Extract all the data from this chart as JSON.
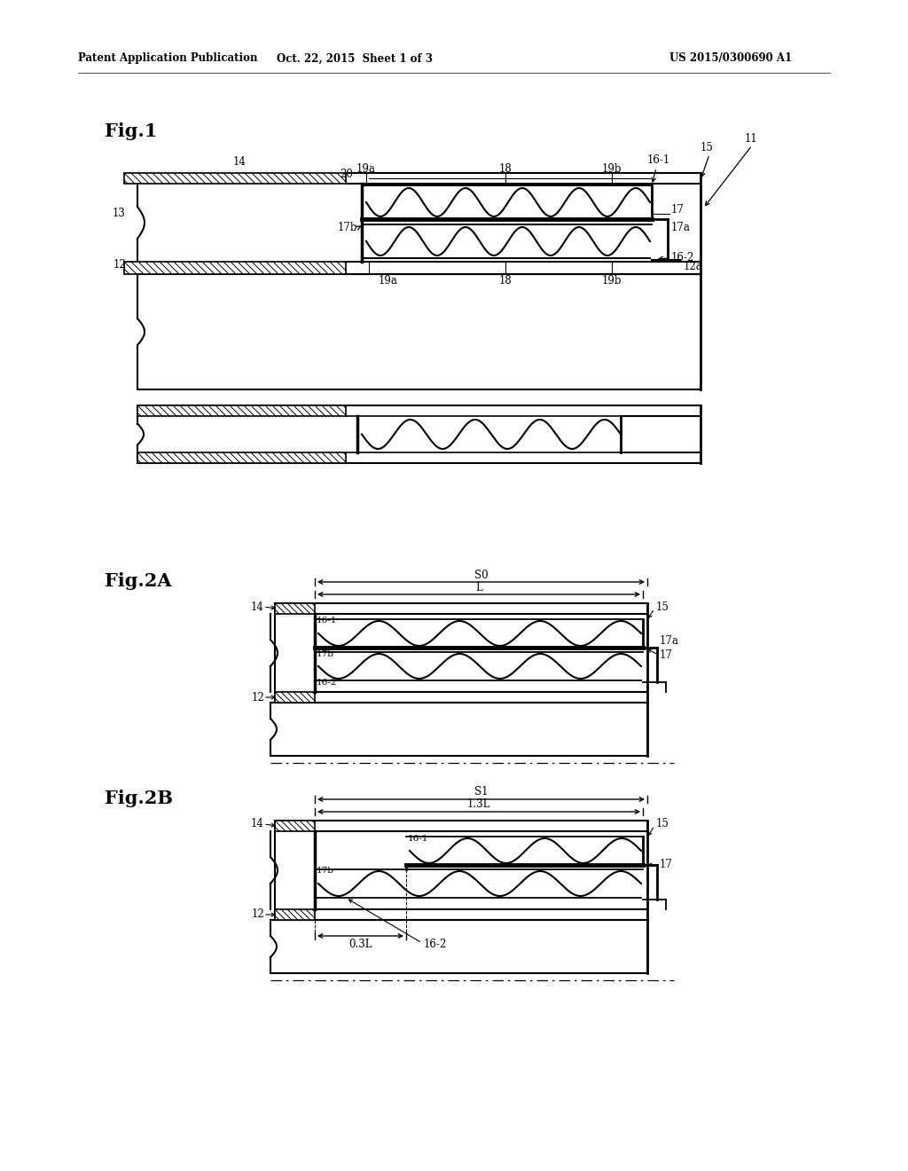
{
  "bg_color": "#ffffff",
  "header_left": "Patent Application Publication",
  "header_mid": "Oct. 22, 2015  Sheet 1 of 3",
  "header_right": "US 2015/0300690 A1",
  "fig1_label": "Fig.1",
  "fig2a_label": "Fig.2A",
  "fig2b_label": "Fig.2B"
}
